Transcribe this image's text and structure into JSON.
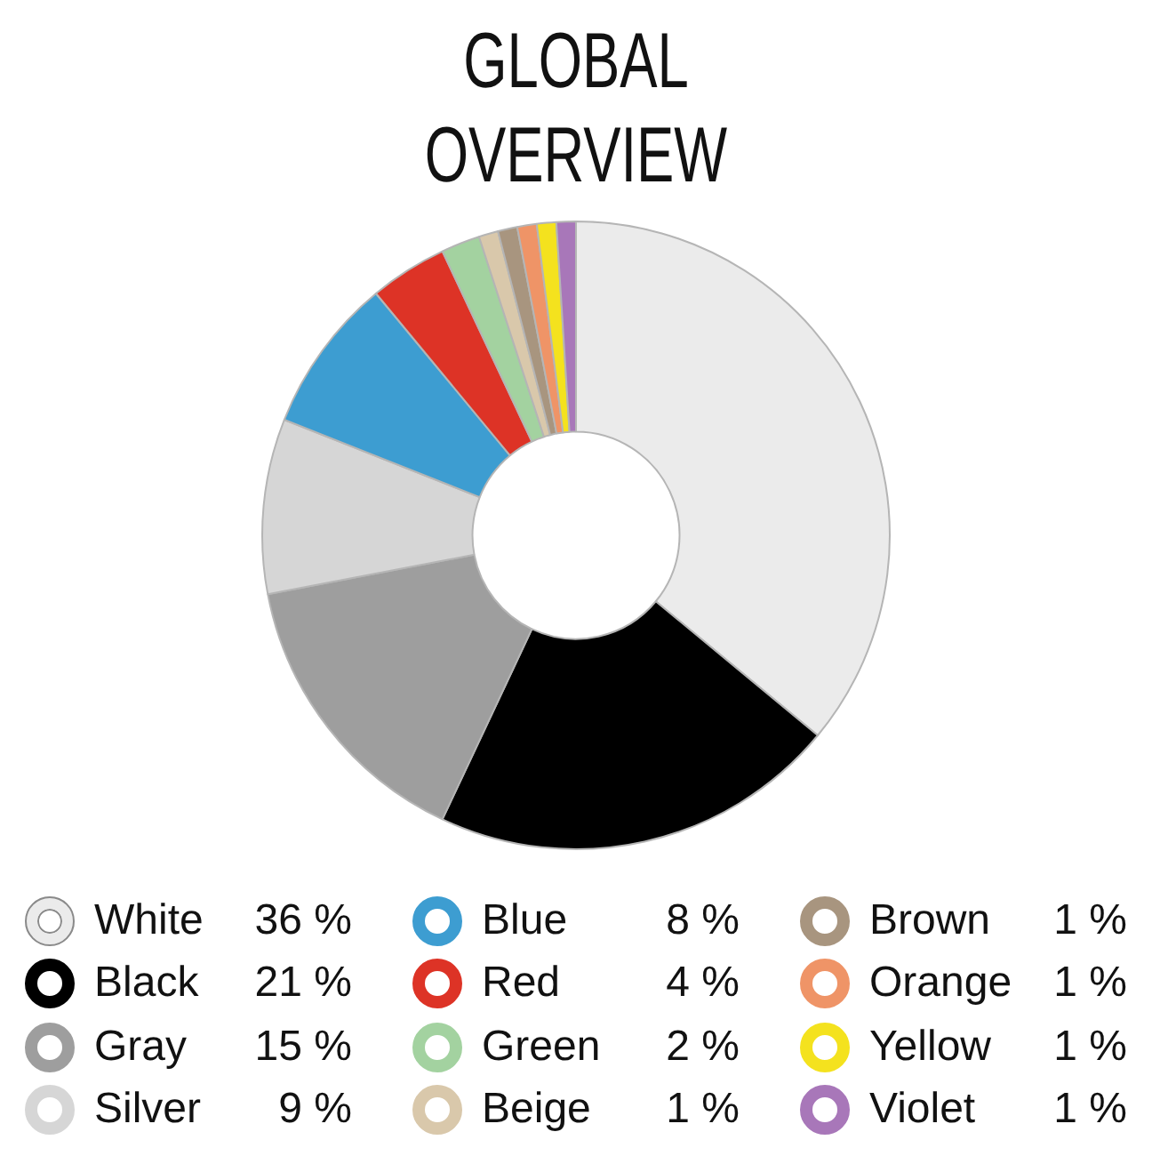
{
  "chart_data": {
    "type": "donut",
    "title": "GLOBAL OVERVIEW",
    "categories": [
      "White",
      "Black",
      "Gray",
      "Silver",
      "Blue",
      "Red",
      "Green",
      "Beige",
      "Brown",
      "Orange",
      "Yellow",
      "Violet"
    ],
    "values": [
      36,
      21,
      15,
      9,
      8,
      4,
      2,
      1,
      1,
      1,
      1,
      1
    ],
    "colors": [
      "#ebebeb",
      "#000000",
      "#9e9e9e",
      "#d6d6d6",
      "#3d9dd1",
      "#dd3326",
      "#a3d2a0",
      "#d9c8ab",
      "#a8957f",
      "#ef9467",
      "#f4e21e",
      "#a877b9"
    ],
    "value_labels": [
      "36 %",
      "21 %",
      "15 %",
      "9 %",
      "8 %",
      "4 %",
      "2 %",
      "1 %",
      "1 %",
      "1 %",
      "1 %",
      "1 %"
    ],
    "legend": "bottom"
  }
}
